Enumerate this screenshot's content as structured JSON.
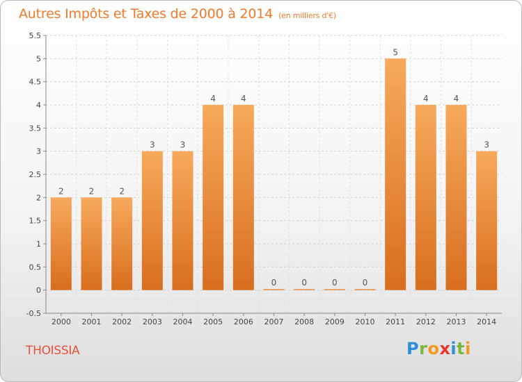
{
  "chart_data": {
    "type": "bar",
    "title": "Autres Impôts et Taxes de 2000 à 2014",
    "unit": "(en milliers d'€)",
    "categories": [
      "2000",
      "2001",
      "2002",
      "2003",
      "2004",
      "2005",
      "2006",
      "2007",
      "2008",
      "2009",
      "2010",
      "2011",
      "2012",
      "2013",
      "2014"
    ],
    "values": [
      2,
      2,
      2,
      3,
      3,
      4,
      4,
      0,
      0,
      0,
      0,
      5,
      4,
      4,
      3
    ],
    "ylim": [
      -0.5,
      5.5
    ],
    "yticks": [
      "-0.5",
      "0",
      "0.5",
      "1",
      "1.5",
      "2",
      "2.5",
      "3",
      "3.5",
      "4",
      "4.5",
      "5",
      "5.5"
    ],
    "grid": true,
    "bar_color": "#f0883a",
    "bar_color_light": "#f7a95c",
    "bar_color_dark": "#d86e1e"
  },
  "footer": {
    "commune": "THOISSIA",
    "logo_letters": [
      {
        "ch": "P",
        "color": "#2e8fd8"
      },
      {
        "ch": "r",
        "color": "#7ab73a"
      },
      {
        "ch": "o",
        "color": "#f39a1e"
      },
      {
        "ch": "x",
        "color": "#e8352e"
      },
      {
        "ch": "i",
        "color": "#2e8fd8"
      },
      {
        "ch": "t",
        "color": "#7ab73a"
      },
      {
        "ch": "i",
        "color": "#f39a1e"
      }
    ]
  }
}
